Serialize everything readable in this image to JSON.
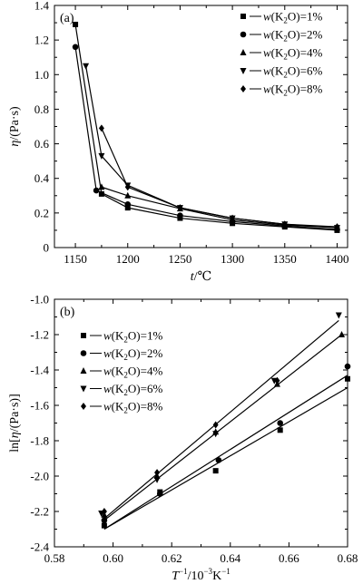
{
  "chart_data": [
    {
      "type": "line",
      "panel_label": "(a)",
      "xlabel": "t/℃",
      "ylabel": "η/(Pa·s)",
      "xlim": [
        1130,
        1410
      ],
      "ylim": [
        0,
        1.4
      ],
      "xticks": [
        1150,
        1200,
        1250,
        1300,
        1350,
        1400
      ],
      "yticks": [
        0,
        0.2,
        0.4,
        0.6,
        0.8,
        1.0,
        1.2,
        1.4
      ],
      "ytick_labels": [
        "0",
        "0.2",
        "0.4",
        "0.6",
        "0.8",
        "1.0",
        "1.2",
        "1.4"
      ],
      "legend_position": "top-right",
      "series": [
        {
          "name": "w(K2O)=1%",
          "marker": "square",
          "x": [
            1150,
            1175,
            1200,
            1250,
            1300,
            1350,
            1400
          ],
          "y": [
            1.29,
            0.31,
            0.23,
            0.17,
            0.14,
            0.12,
            0.1
          ]
        },
        {
          "name": "w(K2O)=2%",
          "marker": "circle",
          "x": [
            1150,
            1170,
            1200,
            1250,
            1300,
            1350,
            1400
          ],
          "y": [
            1.16,
            0.33,
            0.25,
            0.185,
            0.15,
            0.125,
            0.105
          ]
        },
        {
          "name": "w(K2O)=4%",
          "marker": "triangle-up",
          "x": [
            1175,
            1200,
            1250,
            1300,
            1350,
            1400
          ],
          "y": [
            0.35,
            0.3,
            0.225,
            0.16,
            0.13,
            0.115
          ]
        },
        {
          "name": "w(K2O)=6%",
          "marker": "triangle-down",
          "x": [
            1160,
            1175,
            1200,
            1250,
            1300,
            1350,
            1400
          ],
          "y": [
            1.05,
            0.53,
            0.36,
            0.23,
            0.17,
            0.135,
            0.115
          ]
        },
        {
          "name": "w(K2O)=8%",
          "marker": "diamond",
          "x": [
            1175,
            1200,
            1250,
            1300,
            1350,
            1400
          ],
          "y": [
            0.69,
            0.35,
            0.23,
            0.17,
            0.135,
            0.12
          ]
        }
      ]
    },
    {
      "type": "scatter",
      "panel_label": "(b)",
      "xlabel": "T⁻¹/10⁻³K⁻¹",
      "ylabel": "ln[η/(Pa·s)]",
      "xlim": [
        0.58,
        0.68
      ],
      "ylim": [
        -2.4,
        -1.0
      ],
      "xticks": [
        0.58,
        0.6,
        0.62,
        0.64,
        0.66,
        0.68
      ],
      "xtick_labels": [
        "0.58",
        "0.60",
        "0.62",
        "0.64",
        "0.66",
        "0.68"
      ],
      "yticks": [
        -2.4,
        -2.2,
        -2.0,
        -1.8,
        -1.6,
        -1.4,
        -1.2,
        -1.0
      ],
      "ytick_labels": [
        "-2.4",
        "-2.2",
        "-2.0",
        "-1.8",
        "-1.6",
        "-1.4",
        "-1.2",
        "-1.0"
      ],
      "legend_position": "top-left",
      "series": [
        {
          "name": "w(K2O)=1%",
          "marker": "square",
          "x": [
            0.597,
            0.616,
            0.635,
            0.657,
            0.68
          ],
          "y": [
            -2.28,
            -2.09,
            -1.97,
            -1.74,
            -1.45
          ],
          "fit": [
            [
              0.597,
              -2.3
            ],
            [
              0.68,
              -1.5
            ]
          ]
        },
        {
          "name": "w(K2O)=2%",
          "marker": "circle",
          "x": [
            0.597,
            0.616,
            0.636,
            0.657,
            0.68
          ],
          "y": [
            -2.25,
            -2.1,
            -1.91,
            -1.7,
            -1.38
          ],
          "fit": [
            [
              0.597,
              -2.3
            ],
            [
              0.68,
              -1.43
            ]
          ]
        },
        {
          "name": "w(K2O)=4%",
          "marker": "triangle-up",
          "x": [
            0.597,
            0.615,
            0.635,
            0.656,
            0.678
          ],
          "y": [
            -2.22,
            -2.0,
            -1.75,
            -1.48,
            -1.2
          ],
          "fit": [
            [
              0.597,
              -2.25
            ],
            [
              0.678,
              -1.2
            ]
          ]
        },
        {
          "name": "w(K2O)=6%",
          "marker": "triangle-down",
          "x": [
            0.596,
            0.615,
            0.635,
            0.655,
            0.677
          ],
          "y": [
            -2.21,
            -2.02,
            -1.76,
            -1.46,
            -1.09
          ],
          "fit": [
            [
              0.597,
              -2.24
            ],
            [
              0.677,
              -1.12
            ]
          ]
        },
        {
          "name": "w(K2O)=8%",
          "marker": "diamond",
          "x": [
            0.597,
            0.615,
            0.635,
            0.656
          ],
          "y": [
            -2.2,
            -1.98,
            -1.71,
            -1.46
          ],
          "fit": null
        }
      ]
    }
  ]
}
